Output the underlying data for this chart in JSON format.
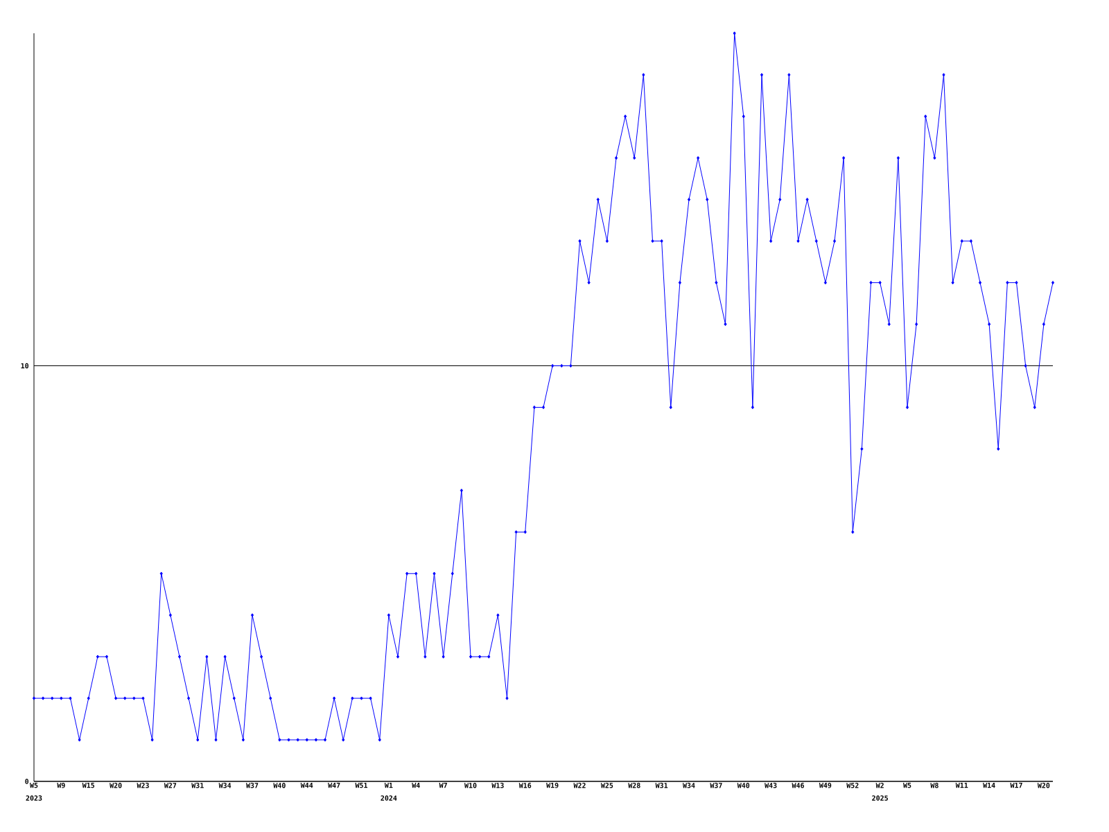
{
  "chart_data": {
    "type": "line",
    "categories": [
      "W5",
      null,
      null,
      "W9",
      null,
      null,
      "W15",
      null,
      null,
      "W20",
      null,
      null,
      "W23",
      null,
      null,
      "W27",
      null,
      null,
      "W31",
      null,
      null,
      "W34",
      null,
      null,
      "W37",
      null,
      null,
      "W40",
      null,
      null,
      "W44",
      null,
      null,
      "W47",
      null,
      null,
      "W51",
      null,
      null,
      "W1",
      null,
      null,
      "W4",
      null,
      null,
      "W7",
      null,
      null,
      "W10",
      null,
      null,
      "W13",
      null,
      null,
      "W16",
      null,
      null,
      "W19",
      null,
      null,
      "W22",
      null,
      null,
      "W25",
      null,
      null,
      "W28",
      null,
      null,
      "W31",
      null,
      null,
      "W34",
      null,
      null,
      "W37",
      null,
      null,
      "W40",
      null,
      null,
      "W43",
      null,
      null,
      "W46",
      null,
      null,
      "W49",
      null,
      null,
      "W52",
      null,
      null,
      "W2",
      null,
      null,
      "W5",
      null,
      null,
      "W8",
      null,
      null,
      "W11",
      null,
      null,
      "W14",
      null,
      null,
      "W17",
      null,
      null,
      "W20",
      null
    ],
    "values": [
      2,
      2,
      2,
      2,
      2,
      1,
      2,
      3,
      3,
      2,
      2,
      2,
      2,
      1,
      5,
      4,
      3,
      2,
      1,
      3,
      1,
      3,
      2,
      1,
      4,
      3,
      2,
      1,
      1,
      1,
      1,
      1,
      1,
      2,
      1,
      2,
      2,
      2,
      1,
      4,
      3,
      5,
      5,
      3,
      5,
      3,
      5,
      7,
      3,
      3,
      3,
      4,
      2,
      6,
      6,
      9,
      9,
      10,
      10,
      10,
      13,
      12,
      14,
      13,
      15,
      16,
      15,
      17,
      13,
      13,
      9,
      12,
      14,
      15,
      14,
      12,
      11,
      18,
      16,
      9,
      17,
      13,
      14,
      17,
      13,
      14,
      13,
      12,
      13,
      15,
      6,
      8,
      12,
      12,
      11,
      15,
      9,
      11,
      16,
      15,
      17,
      12,
      13,
      13,
      12,
      11,
      8,
      12,
      12,
      10,
      9,
      11,
      12
    ],
    "color": "#0000ff",
    "ylim": [
      0,
      18
    ],
    "yticks": [
      0,
      10
    ],
    "grid": "y",
    "marker": "diamond",
    "line_style": "solid",
    "annotations": [
      "2023",
      "2024",
      "2025"
    ]
  }
}
